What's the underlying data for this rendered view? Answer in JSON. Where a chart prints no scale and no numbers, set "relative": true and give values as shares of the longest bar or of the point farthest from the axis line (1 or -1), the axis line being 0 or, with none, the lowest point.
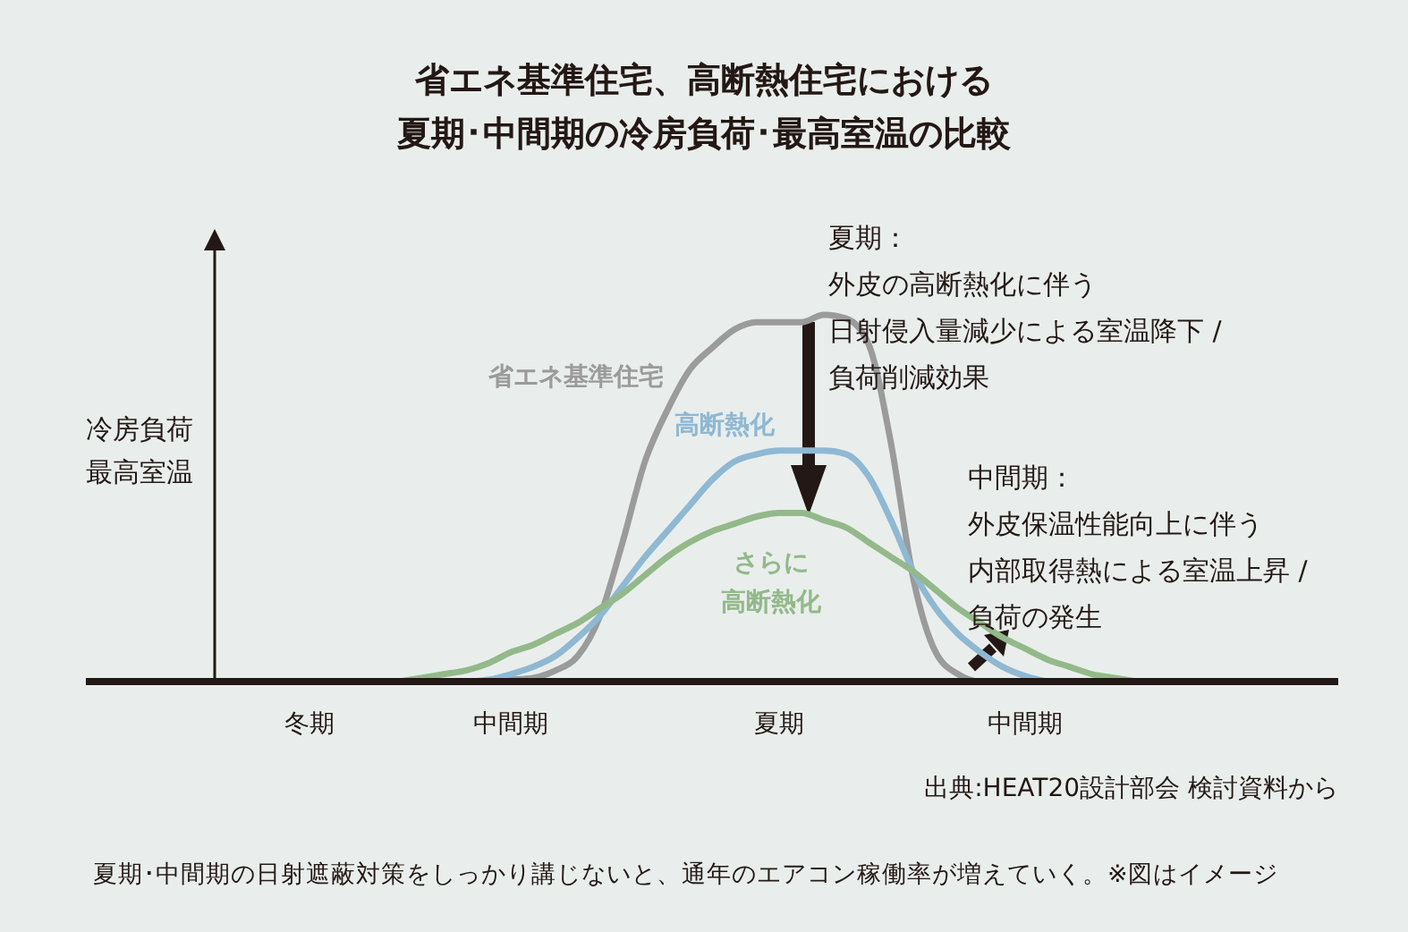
{
  "chart_data": {
    "type": "line",
    "relative": true,
    "title": "省エネ基準住宅、高断熱住宅における",
    "subtitle": "夏期･中間期の冷房負荷･最高室温の比較",
    "ylabel": "冷房負荷最高室温",
    "categories": [
      null,
      null,
      null,
      null,
      null,
      null,
      null,
      null,
      null,
      null,
      "冬期",
      null,
      null,
      null,
      null,
      null,
      null,
      null,
      null,
      "中間期",
      null,
      null,
      null,
      null,
      null,
      null,
      null,
      null,
      null,
      null,
      null,
      "夏期",
      null,
      null,
      null,
      null,
      null,
      null,
      null,
      null,
      null,
      null,
      "中間期",
      null,
      null,
      null,
      null,
      null,
      null,
      null,
      null,
      null,
      null,
      null,
      null,
      null,
      null
    ],
    "series": [
      {
        "name": "省エネ基準住宅",
        "color": "#9b9b9b",
        "values": [
          null,
          null,
          null,
          null,
          null,
          null,
          null,
          null,
          null,
          null,
          null,
          null,
          null,
          null,
          null,
          null,
          null,
          0,
          0,
          0.005,
          0.01,
          0.03,
          0.07,
          0.18,
          0.38,
          0.6,
          0.74,
          0.85,
          0.91,
          0.96,
          0.98,
          0.98,
          0.98,
          1,
          0.99,
          0.92,
          0.65,
          0.28,
          0.08,
          0.02,
          0,
          0,
          null,
          null,
          null,
          null,
          null,
          null,
          null,
          null,
          null,
          null,
          null,
          null,
          null,
          null,
          null
        ]
      },
      {
        "name": "高断熱化",
        "color": "#8fb8d3",
        "values": [
          null,
          null,
          null,
          null,
          null,
          null,
          null,
          null,
          null,
          null,
          null,
          null,
          null,
          null,
          null,
          null,
          null,
          0,
          0.005,
          0.02,
          0.04,
          0.07,
          0.12,
          0.18,
          0.26,
          0.34,
          0.41,
          0.48,
          0.55,
          0.6,
          0.62,
          0.63,
          0.63,
          0.63,
          0.62,
          0.56,
          0.44,
          0.3,
          0.2,
          0.13,
          0.08,
          0.04,
          0.015,
          0,
          null,
          null,
          null,
          null,
          null,
          null,
          null,
          null,
          null,
          null,
          null,
          null,
          null
        ]
      },
      {
        "name": "さらに高断熱化",
        "color": "#93b98a",
        "values": [
          null,
          null,
          null,
          null,
          null,
          null,
          null,
          null,
          null,
          null,
          null,
          null,
          null,
          null,
          0,
          0.01,
          0.02,
          0.03,
          0.05,
          0.08,
          0.1,
          0.13,
          0.16,
          0.2,
          0.24,
          0.29,
          0.34,
          0.38,
          0.41,
          0.43,
          0.45,
          0.46,
          0.46,
          0.44,
          0.42,
          0.38,
          0.34,
          0.3,
          0.25,
          0.2,
          0.16,
          0.12,
          0.09,
          0.06,
          0.04,
          0.02,
          0.01,
          0,
          null,
          null,
          null,
          null,
          null,
          null,
          null,
          null,
          null
        ]
      }
    ],
    "annotations": [
      "夏期：",
      "外皮の高断熱化に伴う",
      "日射侵入量減少による室温降下 /",
      "負荷削減効果",
      "中間期：",
      "外皮保温性能向上に伴う",
      "内部取得熱による室温上昇 /",
      "負荷の発生",
      "出典:HEAT20設計部会 検討資料から",
      "夏期･中間期の日射遮蔽対策をしっかり講じないと、通年のエアコン稼働率が増えていく。※図はイメージ"
    ]
  }
}
